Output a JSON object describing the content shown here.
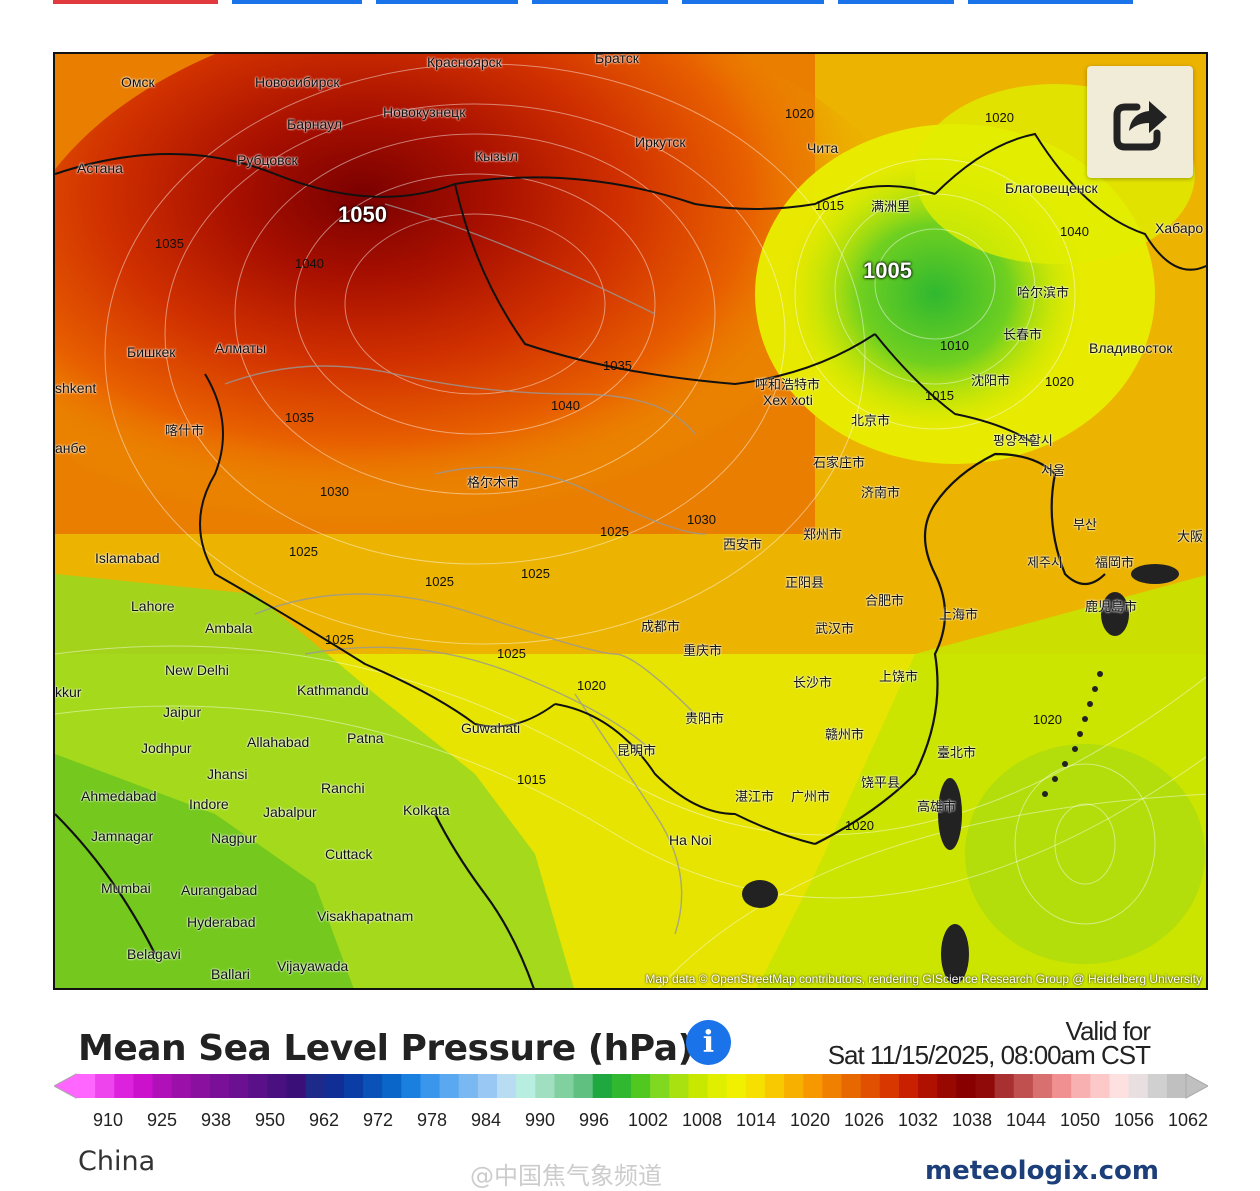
{
  "colors": {
    "tab_red": "#e03a3e",
    "tab_blue": "#1a73e8",
    "info_blue": "#1a73e8"
  },
  "map": {
    "attribution": "Map data © OpenStreetMap contributors, rendering GIScience Research Group @ Heidelberg University",
    "share_icon": "share-icon",
    "place_labels": [
      {
        "name": "Омск"
      },
      {
        "name": "Новосибирск"
      },
      {
        "name": "Красноярск"
      },
      {
        "name": "Братск"
      },
      {
        "name": "Барнаул"
      },
      {
        "name": "Новокузнецк"
      },
      {
        "name": "Иркутск"
      },
      {
        "name": "Чита"
      },
      {
        "name": "Астана"
      },
      {
        "name": "Рубцовск"
      },
      {
        "name": "Кызыл"
      },
      {
        "name": "Благовещенск"
      },
      {
        "name": "Хабаро"
      },
      {
        "name": "Бишкек"
      },
      {
        "name": "Алматы"
      },
      {
        "name": "shkent"
      },
      {
        "name": "Владивосток"
      },
      {
        "name": "Islamabad"
      },
      {
        "name": "Lahore"
      },
      {
        "name": "Ambala"
      },
      {
        "name": "New Delhi"
      },
      {
        "name": "Kathmandu"
      },
      {
        "name": "Guwahati"
      },
      {
        "name": "Jaipur"
      },
      {
        "name": "Jodhpur"
      },
      {
        "name": "Allahabad"
      },
      {
        "name": "Patna"
      },
      {
        "name": "Jhansi"
      },
      {
        "name": "Ranchi"
      },
      {
        "name": "Ahmedabad"
      },
      {
        "name": "Indore"
      },
      {
        "name": "Jabalpur"
      },
      {
        "name": "Kolkata"
      },
      {
        "name": "Jamnagar"
      },
      {
        "name": "Nagpur"
      },
      {
        "name": "Cuttack"
      },
      {
        "name": "Mumbai"
      },
      {
        "name": "Aurangabad"
      },
      {
        "name": "Hyderabad"
      },
      {
        "name": "Visakhapatnam"
      },
      {
        "name": "Belagavi"
      },
      {
        "name": "Ballari"
      },
      {
        "name": "Vijayawada"
      },
      {
        "name": "Ha Noi"
      },
      {
        "name": "Xex xoti"
      },
      {
        "name": "kkur"
      },
      {
        "name": "анбе"
      },
      {
        "name": "满洲里"
      },
      {
        "name": "哈尔滨市"
      },
      {
        "name": "长春市"
      },
      {
        "name": "沈阳市"
      },
      {
        "name": "呼和浩特市"
      },
      {
        "name": "北京市"
      },
      {
        "name": "石家庄市"
      },
      {
        "name": "济南市"
      },
      {
        "name": "평양직할시"
      },
      {
        "name": "서울"
      },
      {
        "name": "부산"
      },
      {
        "name": "제주시"
      },
      {
        "name": "福岡市"
      },
      {
        "name": "鹿児島市"
      },
      {
        "name": "大阪"
      },
      {
        "name": "西安市"
      },
      {
        "name": "郑州市"
      },
      {
        "name": "合肥市"
      },
      {
        "name": "上海市"
      },
      {
        "name": "正阳县"
      },
      {
        "name": "武汉市"
      },
      {
        "name": "成都市"
      },
      {
        "name": "重庆市"
      },
      {
        "name": "长沙市"
      },
      {
        "name": "上饶市"
      },
      {
        "name": "贵阳市"
      },
      {
        "name": "赣州市"
      },
      {
        "name": "臺北市"
      },
      {
        "name": "昆明市"
      },
      {
        "name": "饶平县"
      },
      {
        "name": "高雄市"
      },
      {
        "name": "湛江市"
      },
      {
        "name": "广州市"
      },
      {
        "name": "格尔木市"
      },
      {
        "name": "喀什市"
      }
    ],
    "isobar_labels": [
      {
        "text": "1050"
      },
      {
        "text": "1005"
      },
      {
        "text": "1020"
      },
      {
        "text": "1025"
      },
      {
        "text": "1030"
      },
      {
        "text": "1035"
      },
      {
        "text": "1040"
      },
      {
        "text": "1015"
      },
      {
        "text": "1010"
      }
    ]
  },
  "legend": {
    "title": "Mean Sea Level Pressure (hPa)",
    "info_icon": "info-icon",
    "valid_for": "Valid for",
    "valid_date": "Sat 11/15/2025, 08:00am CST",
    "ticks": [
      "910",
      "925",
      "938",
      "950",
      "962",
      "972",
      "978",
      "984",
      "990",
      "996",
      "1002",
      "1008",
      "1014",
      "1020",
      "1026",
      "1032",
      "1038",
      "1044",
      "1050",
      "1056",
      "1062"
    ],
    "colors": [
      "#ff66ff",
      "#ee44ee",
      "#dd22dd",
      "#cc11cc",
      "#b010b8",
      "#9a10a8",
      "#8a10a0",
      "#7a1098",
      "#6a1090",
      "#5a1088",
      "#4a1080",
      "#3a1078",
      "#1e2a8a",
      "#102e96",
      "#0a3ea6",
      "#0a52b8",
      "#0a66c8",
      "#1a80e0",
      "#3a96ec",
      "#5aa8f0",
      "#7ab8f2",
      "#9ac8f4",
      "#b8dcf2",
      "#b8eee0",
      "#a0e0c0",
      "#80d0a0",
      "#60c080",
      "#20a840",
      "#30b830",
      "#50c820",
      "#80d820",
      "#a8e010",
      "#c8e800",
      "#e0ee00",
      "#f0f000",
      "#f6e000",
      "#f8c800",
      "#f8b000",
      "#f89800",
      "#f08000",
      "#e86800",
      "#e05000",
      "#d83800",
      "#c82000",
      "#b01000",
      "#980800",
      "#880000",
      "#900a0a",
      "#a83030",
      "#c05050",
      "#d87070",
      "#f09090",
      "#f8b0b0",
      "#fcc8c8",
      "#fde0e0",
      "#e8e0e0",
      "#d0d0d0",
      "#c0c0c0"
    ]
  },
  "footer": {
    "region": "China",
    "watermark": "@中国焦气象频道",
    "brand": "meteologix.com"
  }
}
